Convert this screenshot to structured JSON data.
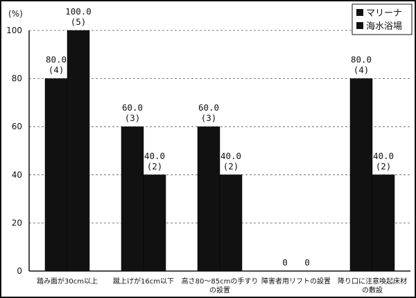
{
  "chart_data": {
    "type": "bar",
    "ylabel": "(%)",
    "ylim": [
      0,
      100
    ],
    "yticks": [
      "0",
      "20",
      "40",
      "60",
      "80",
      "100"
    ],
    "grid": true,
    "legend_position": "top-right",
    "categories": [
      [
        "踏み面が30cm以上"
      ],
      [
        "蹴上げが16cm以下"
      ],
      [
        "高さ80～85cmの手すり",
        "の設置"
      ],
      [
        "障害者用リフトの設置"
      ],
      [
        "降り口に注意喚起床材",
        "の敷設"
      ]
    ],
    "series": [
      {
        "name": "マリーナ",
        "color": "#111111",
        "values": [
          80.0,
          60.0,
          60.0,
          0,
          80.0
        ],
        "labels": [
          [
            "80.0",
            "(4)"
          ],
          [
            "60.0",
            "(3)"
          ],
          [
            "60.0",
            "(3)"
          ],
          [
            "0"
          ],
          [
            "80.0",
            "(4)"
          ]
        ]
      },
      {
        "name": "海水浴場",
        "color": "#111111",
        "values": [
          100.0,
          40.0,
          40.0,
          0,
          40.0
        ],
        "labels": [
          [
            "100.0",
            "(5)"
          ],
          [
            "40.0",
            "(2)"
          ],
          [
            "40.0",
            "(2)"
          ],
          [
            "0"
          ],
          [
            "40.0",
            "(2)"
          ]
        ]
      }
    ]
  }
}
